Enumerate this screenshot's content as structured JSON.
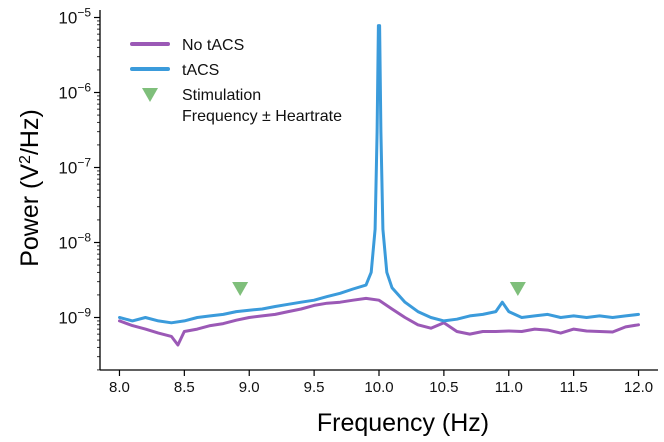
{
  "chart_data": {
    "type": "line",
    "title": "",
    "xlabel": "Frequency (Hz)",
    "ylabel_prefix": "Power (",
    "ylabel_root": "V",
    "ylabel_sup": "2",
    "ylabel_suffix": "/Hz)",
    "y_scale": "log",
    "xlim": [
      7.85,
      12.15
    ],
    "ylim_exp": [
      -9.7,
      -4.9
    ],
    "x_ticks": [
      8.0,
      8.5,
      9.0,
      9.5,
      10.0,
      10.5,
      11.0,
      11.5,
      12.0
    ],
    "x_tick_labels": [
      "8.0",
      "8.5",
      "9.0",
      "9.5",
      "10.0",
      "10.5",
      "11.0",
      "11.5",
      "12.0"
    ],
    "y_tick_exponents": [
      -9,
      -8,
      -7,
      -6,
      -5
    ],
    "y_tick_base": "10",
    "y_tick_exp_labels": [
      "−9",
      "−8",
      "−7",
      "−6",
      "−5"
    ],
    "grid": false,
    "legend_position": "top-left",
    "series": [
      {
        "name": "No tACS",
        "color": "#9b59b6",
        "x": [
          8.0,
          8.1,
          8.2,
          8.3,
          8.4,
          8.45,
          8.5,
          8.6,
          8.7,
          8.8,
          8.9,
          9.0,
          9.1,
          9.2,
          9.3,
          9.4,
          9.5,
          9.6,
          9.7,
          9.8,
          9.9,
          10.0,
          10.1,
          10.2,
          10.3,
          10.4,
          10.5,
          10.6,
          10.7,
          10.8,
          10.9,
          11.0,
          11.1,
          11.2,
          11.3,
          11.4,
          11.5,
          11.6,
          11.7,
          11.8,
          11.9,
          12.0
        ],
        "y": [
          9e-10,
          7.8e-10,
          7e-10,
          6.2e-10,
          5.6e-10,
          4.3e-10,
          6.5e-10,
          7e-10,
          7.8e-10,
          8.3e-10,
          9.2e-10,
          1e-09,
          1.05e-09,
          1.1e-09,
          1.2e-09,
          1.3e-09,
          1.45e-09,
          1.55e-09,
          1.6e-09,
          1.7e-09,
          1.8e-09,
          1.7e-09,
          1.3e-09,
          1e-09,
          8e-10,
          7.2e-10,
          8.5e-10,
          6.5e-10,
          6e-10,
          6.5e-10,
          6.5e-10,
          6.6e-10,
          6.5e-10,
          7e-10,
          6.8e-10,
          6.2e-10,
          7e-10,
          6.6e-10,
          6.5e-10,
          6.4e-10,
          7.5e-10,
          8e-10
        ]
      },
      {
        "name": "tACS",
        "color": "#3b9bdb",
        "x": [
          8.0,
          8.1,
          8.2,
          8.3,
          8.4,
          8.5,
          8.6,
          8.7,
          8.8,
          8.9,
          9.0,
          9.1,
          9.2,
          9.3,
          9.4,
          9.5,
          9.6,
          9.7,
          9.8,
          9.9,
          9.94,
          9.97,
          9.985,
          9.995,
          10.005,
          10.015,
          10.03,
          10.06,
          10.1,
          10.2,
          10.3,
          10.4,
          10.5,
          10.6,
          10.7,
          10.8,
          10.9,
          10.95,
          11.0,
          11.1,
          11.2,
          11.3,
          11.4,
          11.5,
          11.6,
          11.7,
          11.8,
          11.9,
          12.0
        ],
        "y": [
          1e-09,
          9e-10,
          1e-09,
          9e-10,
          8.5e-10,
          9e-10,
          1e-09,
          1.05e-09,
          1.1e-09,
          1.2e-09,
          1.25e-09,
          1.3e-09,
          1.4e-09,
          1.5e-09,
          1.6e-09,
          1.7e-09,
          1.9e-09,
          2.1e-09,
          2.4e-09,
          2.7e-09,
          4e-09,
          1.5e-08,
          3e-07,
          7.8e-06,
          7.8e-06,
          3e-07,
          1.5e-08,
          4e-09,
          2.5e-09,
          1.6e-09,
          1.2e-09,
          1e-09,
          9e-10,
          9.5e-10,
          1.05e-09,
          1.1e-09,
          1.2e-09,
          1.6e-09,
          1.2e-09,
          1e-09,
          1.05e-09,
          1.1e-09,
          1e-09,
          1.05e-09,
          1e-09,
          1.05e-09,
          1e-09,
          1.05e-09,
          1.1e-09
        ]
      },
      {
        "name": "Stimulation",
        "name_line2": "Frequency ± Heartrate",
        "color": "#7fbf7b",
        "marker": "triangle-down",
        "x": [
          8.93,
          11.07
        ],
        "y": [
          2.4e-09,
          2.4e-09
        ]
      }
    ]
  }
}
